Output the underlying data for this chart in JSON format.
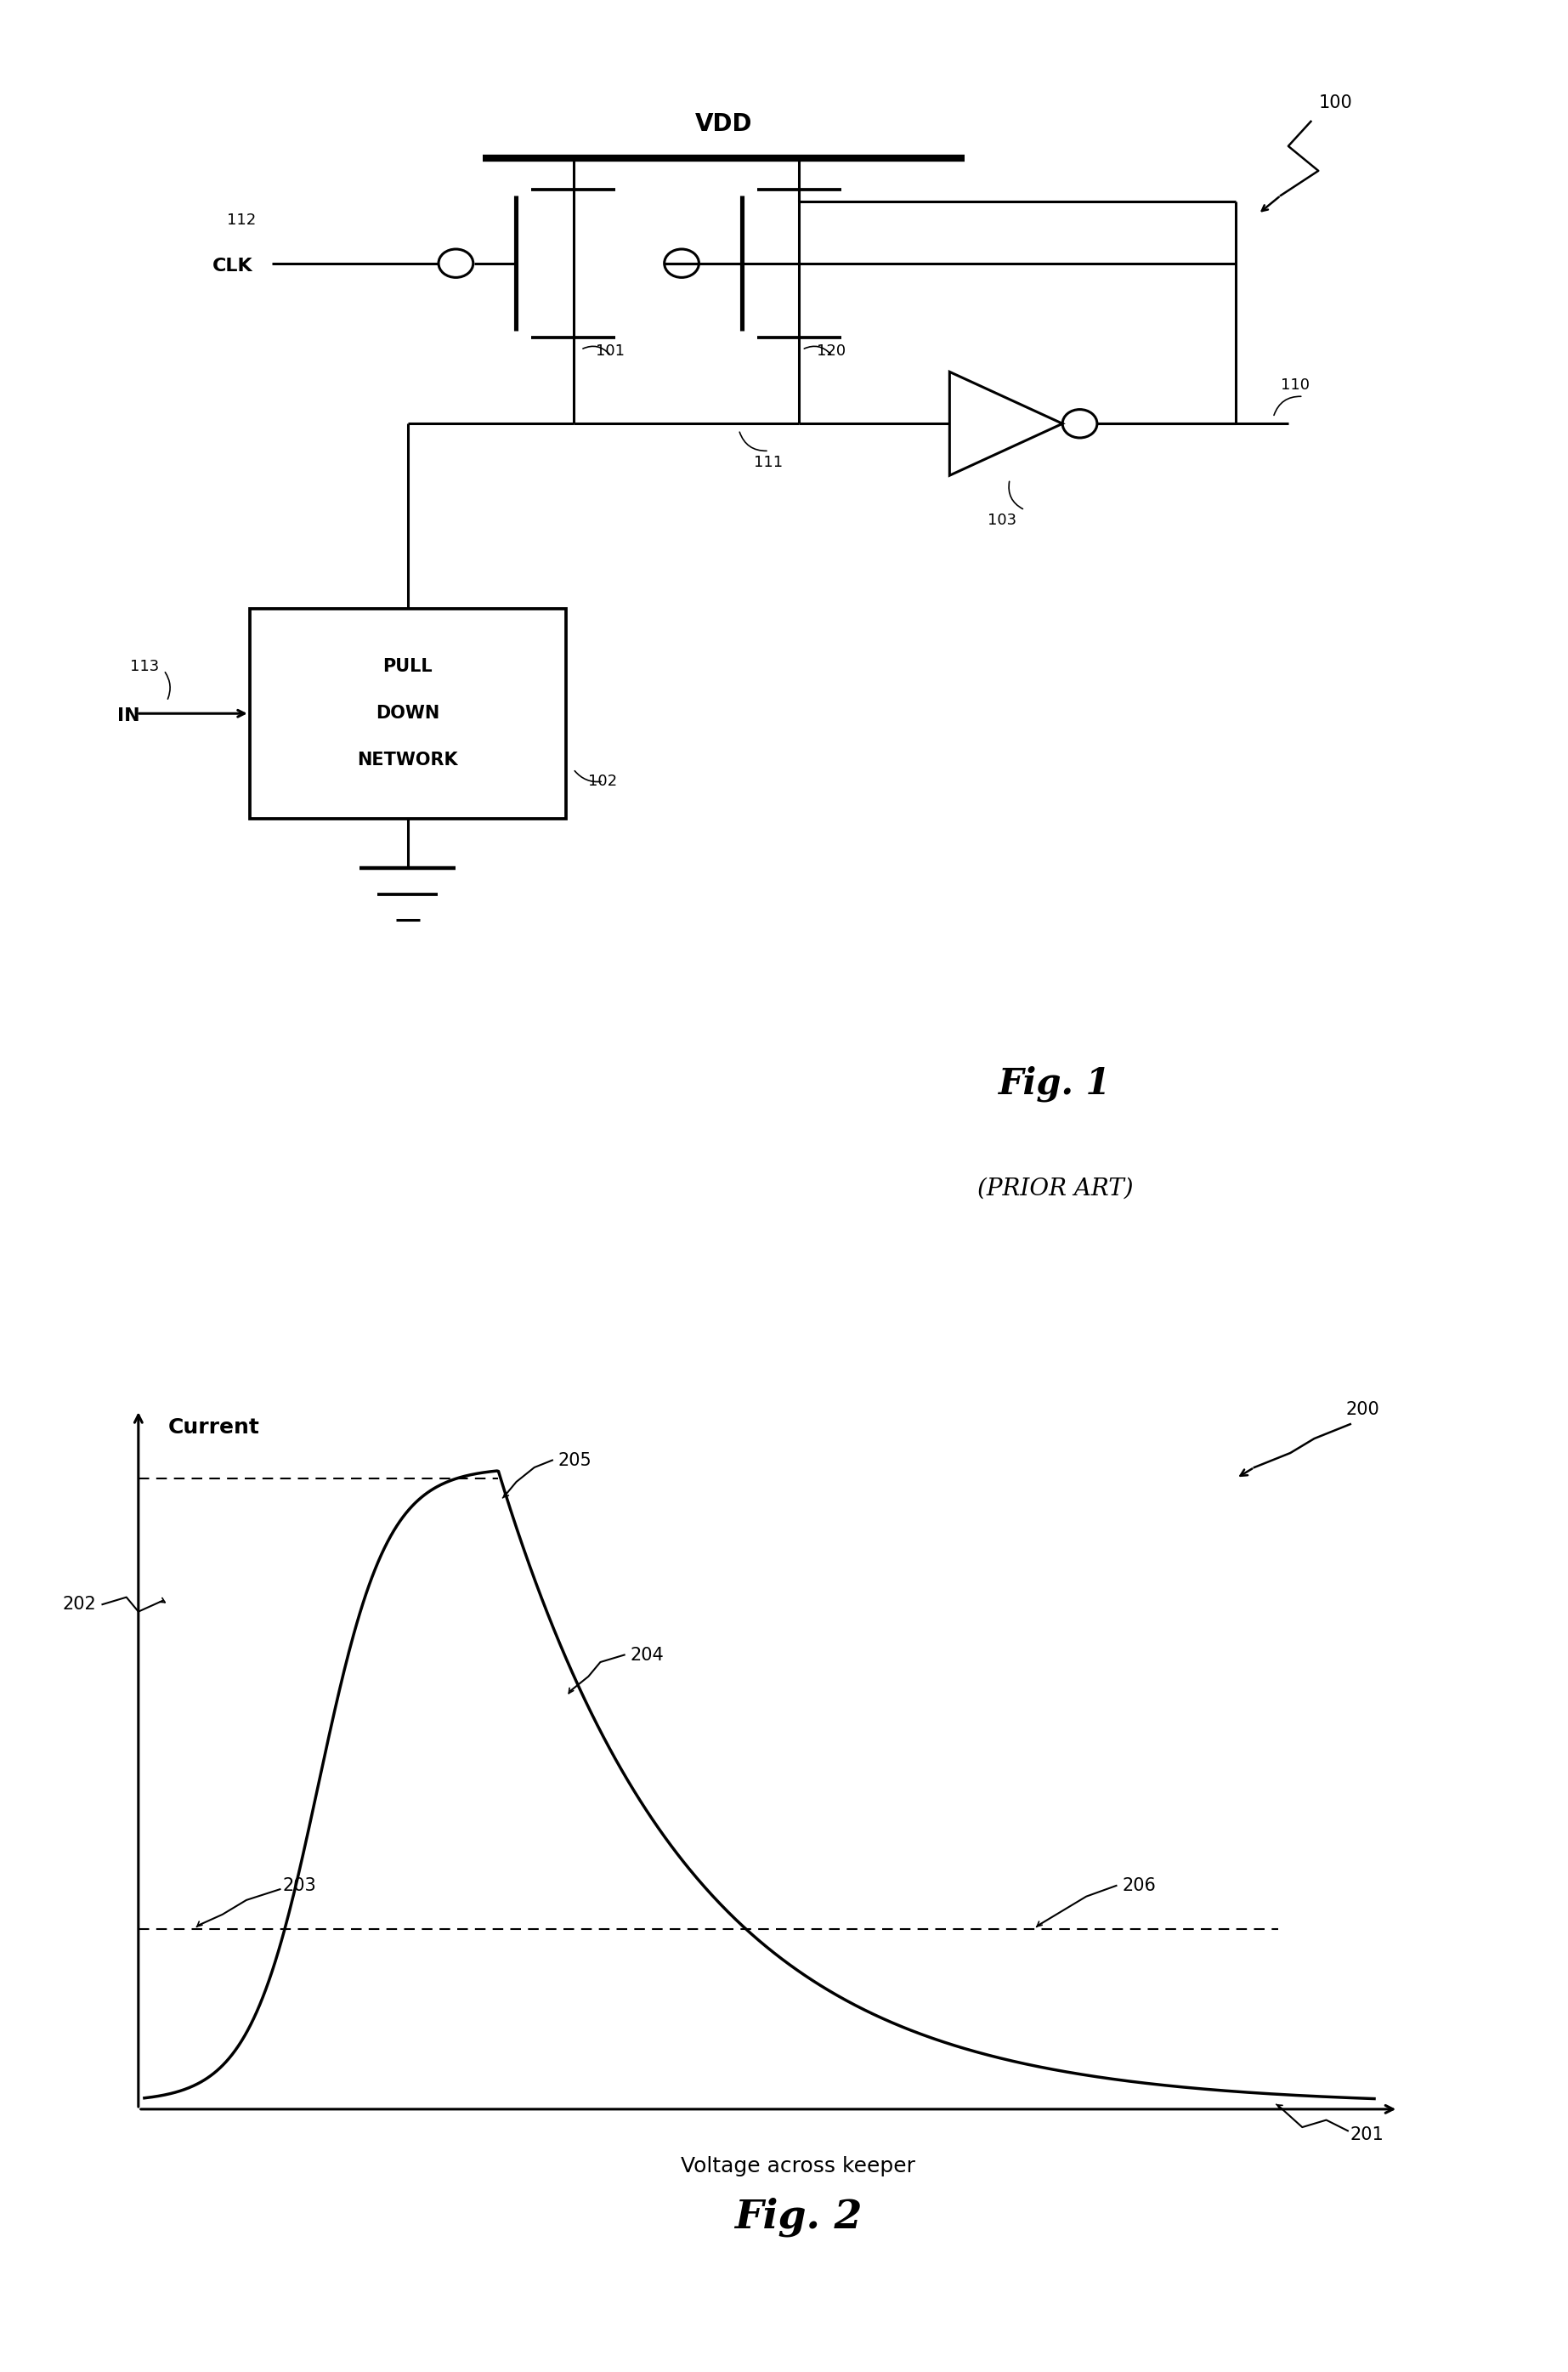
{
  "bg_color": "#ffffff",
  "fig1": {
    "title_ref": "100",
    "vdd_label": "VDD",
    "clk_label": "CLK",
    "clk_ref": "112",
    "t101": "101",
    "t120": "120",
    "t110": "110",
    "t111": "111",
    "t103": "103",
    "t113": "113",
    "t102": "102",
    "in_label": "IN",
    "pdn_line1": "PULL",
    "pdn_line2": "DOWN",
    "pdn_line3": "NETWORK",
    "fig_label": "Fig. 1",
    "prior_art": "(PRIOR ART)"
  },
  "fig2": {
    "xlabel": "Voltage across keeper",
    "ylabel": "Current",
    "ref200": "200",
    "ref201": "201",
    "ref202": "202",
    "ref203": "203",
    "ref204": "204",
    "ref205": "205",
    "ref206": "206",
    "fig_label": "Fig. 2"
  }
}
